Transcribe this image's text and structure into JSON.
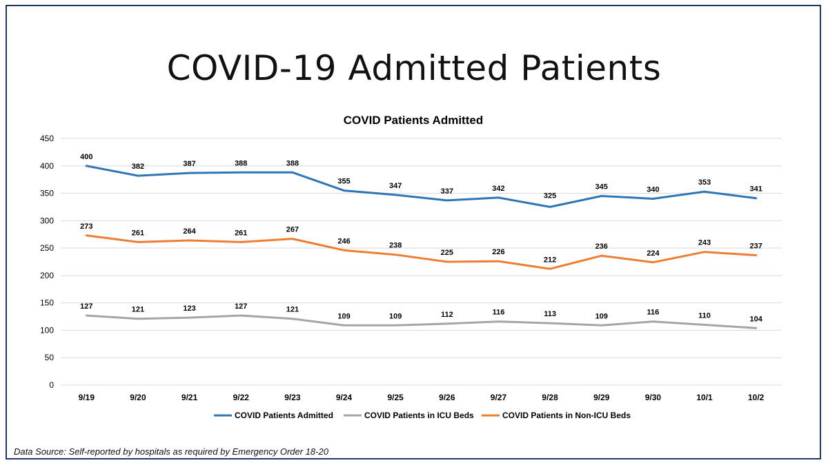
{
  "slide": {
    "title": "COVID-19 Admitted Patients",
    "source_note": "Data Source: Self-reported by hospitals as required by Emergency Order 18-20",
    "border_color": "#1f3864"
  },
  "chart_data": {
    "type": "line",
    "title": "COVID Patients Admitted",
    "xlabel": "",
    "ylabel": "",
    "ylim": [
      0,
      450
    ],
    "yticks": [
      0,
      50,
      100,
      150,
      200,
      250,
      300,
      350,
      400,
      450
    ],
    "grid": true,
    "legend_position": "bottom",
    "categories": [
      "9/19",
      "9/20",
      "9/21",
      "9/22",
      "9/23",
      "9/24",
      "9/25",
      "9/26",
      "9/27",
      "9/28",
      "9/29",
      "9/30",
      "10/1",
      "10/2"
    ],
    "series": [
      {
        "name": "COVID Patients Admitted",
        "color": "#2e75b6",
        "values": [
          400,
          382,
          387,
          388,
          388,
          355,
          347,
          337,
          342,
          325,
          345,
          340,
          353,
          341
        ],
        "label_offsets": [
          -1,
          -1,
          -1,
          -1,
          -1,
          -1,
          -1,
          -1,
          -1,
          1,
          -1,
          -1,
          -1,
          -1
        ]
      },
      {
        "name": "COVID Patients in ICU Beds",
        "color": "#a5a5a5",
        "values": [
          127,
          121,
          123,
          127,
          121,
          109,
          109,
          112,
          116,
          113,
          109,
          116,
          110,
          104
        ],
        "label_offsets": [
          -1,
          -1,
          -1,
          -1,
          -1,
          -1,
          -1,
          -1,
          -1,
          -1,
          -1,
          -1,
          -1,
          -1
        ]
      },
      {
        "name": "COVID Patients in Non-ICU Beds",
        "color": "#ed7d31",
        "values": [
          273,
          261,
          264,
          261,
          267,
          246,
          238,
          225,
          226,
          212,
          236,
          224,
          243,
          237
        ],
        "label_offsets": [
          -1,
          -1,
          -1,
          -1,
          -1,
          -1,
          -1,
          -1,
          -1,
          -1,
          -1,
          -1,
          -1,
          -1
        ]
      }
    ]
  }
}
